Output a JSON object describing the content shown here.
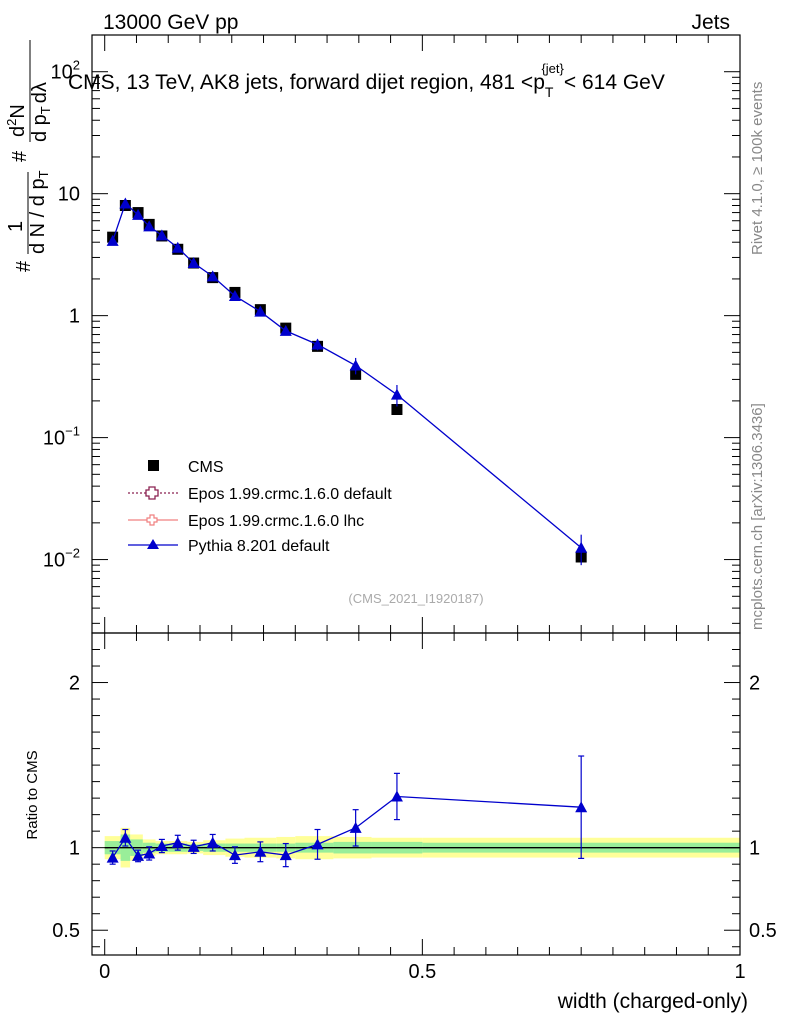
{
  "header": {
    "energy_label": "13000 GeV pp",
    "category_label": "Jets"
  },
  "side_labels": {
    "rivet": "Rivet 4.1.0, ≥ 100k events",
    "mcplots": "mcplots.cern.ch [arXiv:1306.3436]"
  },
  "chart_data": [
    {
      "type": "scatter",
      "panel": "main",
      "title": "CMS, 13 TeV, AK8 jets, forward dijet region, 481 <p",
      "title_sub": "T",
      "title_sup": "{jet}",
      "title_end": "< 614 GeV",
      "analysis_id": "(CMS_2021_I1920187)",
      "ylabel": "# 1/dN/dp_T^# d^2N/dp_T dλ",
      "ylabel_parts": {
        "a": "#",
        "b": "1",
        "c": "d N / d p",
        "d": "T",
        "e": "#",
        "f": "d",
        "g": "2",
        "h": "N",
        "i": "d p",
        "j": "T",
        "k": "dλ"
      },
      "yscale": "log",
      "ylim": [
        0.0025,
        200
      ],
      "xlim": [
        -0.02,
        1.0
      ],
      "yticks": [
        {
          "value": 0.01,
          "base": "10",
          "exp": "−2"
        },
        {
          "value": 0.1,
          "base": "10",
          "exp": "−1"
        },
        {
          "value": 1,
          "label": "1"
        },
        {
          "value": 10,
          "label": "10"
        },
        {
          "value": 100,
          "base": "10",
          "exp": "2"
        }
      ],
      "legend_position": "middle-left",
      "series": [
        {
          "name": "CMS",
          "marker": "square",
          "color": "#000000",
          "x": [
            0.0125,
            0.0325,
            0.0525,
            0.07,
            0.09,
            0.115,
            0.14,
            0.17,
            0.205,
            0.245,
            0.285,
            0.335,
            0.395,
            0.46,
            0.75
          ],
          "y": [
            4.4,
            8.0,
            7.0,
            5.6,
            4.5,
            3.5,
            2.7,
            2.05,
            1.55,
            1.12,
            0.79,
            0.56,
            0.33,
            0.17,
            0.0105
          ]
        },
        {
          "name": "Epos 1.99.crmc.1.6.0 default",
          "marker": "open-cross",
          "line": "dotted",
          "color": "#8b2252",
          "x": [],
          "y": []
        },
        {
          "name": "Epos 1.99.crmc.1.6.0 lhc",
          "marker": "open-cross",
          "line": "solid",
          "color": "#f08080",
          "x": [],
          "y": []
        },
        {
          "name": "Pythia 8.201 default",
          "marker": "triangle",
          "line": "solid",
          "color": "#0000cc",
          "x": [
            0.0125,
            0.0325,
            0.0525,
            0.07,
            0.09,
            0.115,
            0.14,
            0.17,
            0.205,
            0.245,
            0.285,
            0.335,
            0.395,
            0.46,
            0.75
          ],
          "y": [
            4.1,
            8.3,
            6.7,
            5.4,
            4.55,
            3.6,
            2.7,
            2.1,
            1.45,
            1.08,
            0.75,
            0.58,
            0.39,
            0.225,
            0.0125
          ],
          "yerr_up": [
            0.25,
            0.5,
            0.4,
            0.3,
            0.25,
            0.2,
            0.16,
            0.12,
            0.09,
            0.07,
            0.05,
            0.06,
            0.06,
            0.045,
            0.0035
          ],
          "yerr_dn": [
            0.25,
            0.5,
            0.4,
            0.3,
            0.25,
            0.2,
            0.16,
            0.12,
            0.09,
            0.07,
            0.05,
            0.06,
            0.06,
            0.045,
            0.0035
          ]
        }
      ]
    },
    {
      "type": "scatter",
      "panel": "ratio",
      "ylabel": "Ratio to CMS",
      "xlabel": "width (charged-only)",
      "ylim": [
        0.35,
        2.3
      ],
      "xlim": [
        -0.02,
        1.0
      ],
      "yticks": [
        0.5,
        1,
        2
      ],
      "xticks": [
        0,
        0.5,
        1
      ],
      "xtick_labels": [
        "0",
        "0.5",
        "1"
      ],
      "bins": [
        0,
        0.025,
        0.04,
        0.06,
        0.08,
        0.1,
        0.13,
        0.155,
        0.19,
        0.22,
        0.27,
        0.3,
        0.36,
        0.42,
        0.5,
        1.0
      ],
      "band_green": [
        [
          0.96,
          1.04
        ],
        [
          0.92,
          1.08
        ],
        [
          0.95,
          1.05
        ],
        [
          0.97,
          1.03
        ],
        [
          0.975,
          1.025
        ],
        [
          0.975,
          1.025
        ],
        [
          0.98,
          1.02
        ],
        [
          0.975,
          1.025
        ],
        [
          0.975,
          1.025
        ],
        [
          0.975,
          1.025
        ],
        [
          0.975,
          1.025
        ],
        [
          0.97,
          1.03
        ],
        [
          0.965,
          1.035
        ],
        [
          0.965,
          1.035
        ],
        [
          0.97,
          1.03
        ]
      ],
      "band_yellow": [
        [
          0.93,
          1.07
        ],
        [
          0.88,
          1.12
        ],
        [
          0.92,
          1.08
        ],
        [
          0.95,
          1.05
        ],
        [
          0.96,
          1.04
        ],
        [
          0.96,
          1.04
        ],
        [
          0.965,
          1.035
        ],
        [
          0.955,
          1.045
        ],
        [
          0.945,
          1.055
        ],
        [
          0.94,
          1.06
        ],
        [
          0.935,
          1.065
        ],
        [
          0.93,
          1.07
        ],
        [
          0.935,
          1.065
        ],
        [
          0.94,
          1.06
        ],
        [
          0.94,
          1.06
        ]
      ],
      "series": [
        {
          "name": "Pythia 8.201 default",
          "color": "#0000cc",
          "x": [
            0.0125,
            0.0325,
            0.0525,
            0.07,
            0.09,
            0.115,
            0.14,
            0.17,
            0.205,
            0.245,
            0.285,
            0.335,
            0.395,
            0.46,
            0.75
          ],
          "y": [
            0.94,
            1.06,
            0.95,
            0.965,
            1.01,
            1.03,
            1.005,
            1.03,
            0.955,
            0.975,
            0.955,
            1.02,
            1.12,
            1.31,
            1.245
          ],
          "yerr_up": [
            0.04,
            0.05,
            0.035,
            0.04,
            0.04,
            0.045,
            0.04,
            0.05,
            0.05,
            0.06,
            0.07,
            0.09,
            0.11,
            0.14,
            0.31
          ],
          "yerr_dn": [
            0.04,
            0.05,
            0.035,
            0.04,
            0.04,
            0.045,
            0.04,
            0.05,
            0.05,
            0.06,
            0.07,
            0.09,
            0.11,
            0.14,
            0.31
          ]
        }
      ]
    }
  ]
}
